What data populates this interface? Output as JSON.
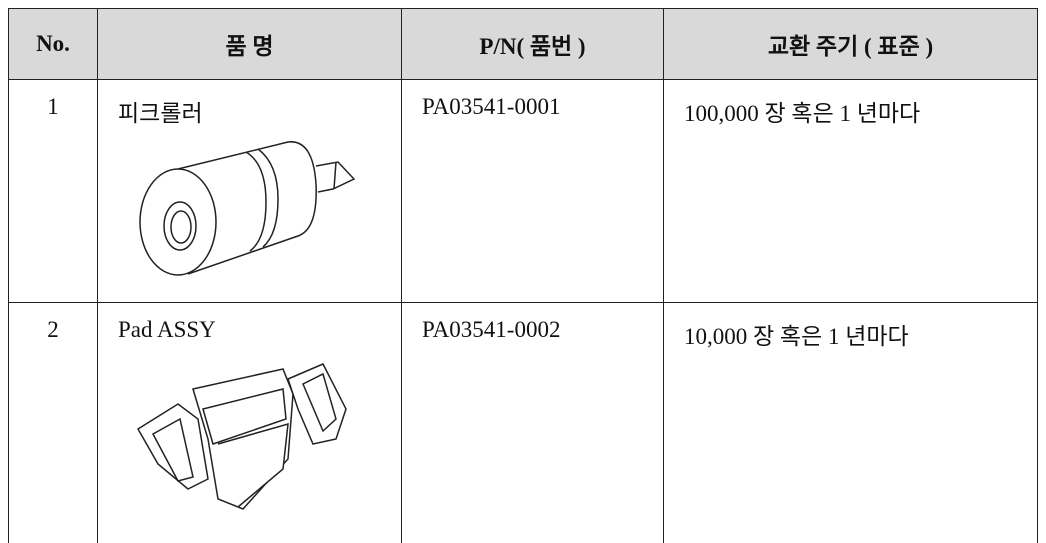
{
  "table": {
    "header": [
      "No.",
      "품 명",
      "P/N( 품번 )",
      "교환 주기 ( 표준 )"
    ],
    "rows": [
      [
        "1",
        "피크롤러",
        "PA03541-0001",
        "100,000 장 혹은 1 년마다"
      ],
      [
        "2",
        "Pad ASSY",
        "PA03541-0002",
        "10,000 장 혹은 1 년마다"
      ]
    ]
  }
}
